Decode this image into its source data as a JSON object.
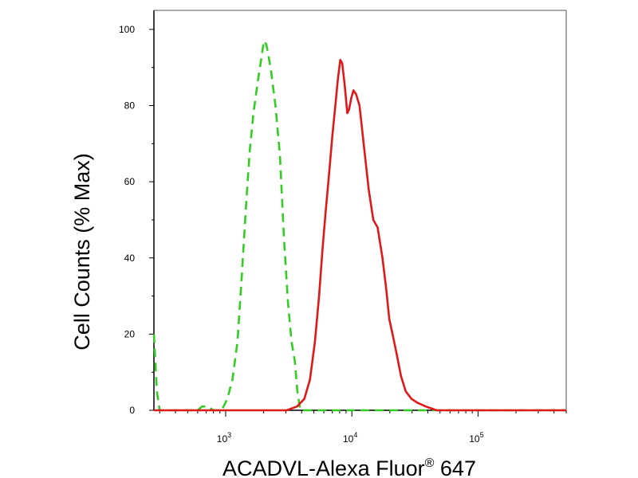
{
  "chart_data": {
    "type": "line",
    "xlabel": "ACADVL-Alexa Fluor",
    "xlabel_superscript": "®",
    "xlabel_suffix": " 647",
    "ylabel": "Cell Counts (% Max)",
    "x_scale": "log",
    "xlim": [
      270,
      500000
    ],
    "ylim": [
      0,
      105
    ],
    "y_ticks": [
      0,
      20,
      40,
      60,
      80,
      100
    ],
    "x_ticks": [
      {
        "value": 1000,
        "base": "10",
        "exp": "3"
      },
      {
        "value": 10000,
        "base": "10",
        "exp": "4"
      },
      {
        "value": 100000,
        "base": "10",
        "exp": "5"
      }
    ],
    "grid": false,
    "legend": "none",
    "series": [
      {
        "style": "dashed",
        "color": "#33cc22",
        "points": [
          [
            270,
            20
          ],
          [
            285,
            5
          ],
          [
            300,
            0
          ],
          [
            600,
            0
          ],
          [
            650,
            1
          ],
          [
            720,
            1
          ],
          [
            800,
            0
          ],
          [
            930,
            0
          ],
          [
            1030,
            3
          ],
          [
            1130,
            8
          ],
          [
            1240,
            18
          ],
          [
            1340,
            35
          ],
          [
            1440,
            52
          ],
          [
            1550,
            68
          ],
          [
            1660,
            78
          ],
          [
            1790,
            86
          ],
          [
            1910,
            92
          ],
          [
            2010,
            97
          ],
          [
            2100,
            96
          ],
          [
            2190,
            93
          ],
          [
            2290,
            89
          ],
          [
            2480,
            80
          ],
          [
            2690,
            67
          ],
          [
            2900,
            45
          ],
          [
            3120,
            28
          ],
          [
            3330,
            18
          ],
          [
            3530,
            13
          ],
          [
            3700,
            5
          ],
          [
            3900,
            0
          ],
          [
            4100,
            0
          ],
          [
            500000,
            0
          ]
        ]
      },
      {
        "style": "solid",
        "color": "#e01818",
        "points": [
          [
            270,
            0
          ],
          [
            2200,
            0
          ],
          [
            3050,
            0
          ],
          [
            3680,
            1
          ],
          [
            4200,
            3
          ],
          [
            4650,
            8
          ],
          [
            5100,
            18
          ],
          [
            5500,
            30
          ],
          [
            5850,
            42
          ],
          [
            6200,
            52
          ],
          [
            6600,
            62
          ],
          [
            7000,
            72
          ],
          [
            7400,
            80
          ],
          [
            7750,
            87
          ],
          [
            8100,
            92
          ],
          [
            8400,
            91
          ],
          [
            8800,
            85
          ],
          [
            9200,
            78
          ],
          [
            9500,
            79
          ],
          [
            9900,
            82
          ],
          [
            10300,
            84
          ],
          [
            10800,
            83
          ],
          [
            11500,
            80
          ],
          [
            12400,
            70
          ],
          [
            13600,
            58
          ],
          [
            14800,
            50
          ],
          [
            16000,
            48
          ],
          [
            17500,
            40
          ],
          [
            18700,
            32
          ],
          [
            19800,
            24
          ],
          [
            21000,
            20
          ],
          [
            22600,
            15
          ],
          [
            24500,
            9
          ],
          [
            26700,
            5
          ],
          [
            29700,
            3
          ],
          [
            33000,
            2
          ],
          [
            38500,
            1
          ],
          [
            47000,
            0
          ],
          [
            500000,
            0
          ]
        ]
      }
    ]
  }
}
